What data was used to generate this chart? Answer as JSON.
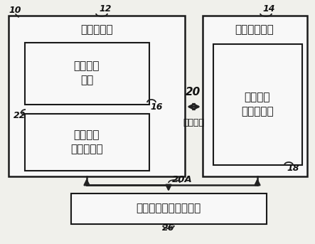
{
  "bg_color": "#f0f0eb",
  "box_fill": "#f8f8f8",
  "box_edge": "#1a1a1a",
  "text_color": "#111111",
  "arrow_color": "#222222",
  "label_10": "10",
  "label_12": "12",
  "label_14": "14",
  "label_16": "16",
  "label_18": "18",
  "label_20": "20",
  "label_20A": "20A",
  "label_22": "22",
  "label_26": "26",
  "text_proc_subsys": "处理子系统",
  "text_stor_subsys": "存储器子系统",
  "text_proc_circuit": "处理电路\n系统",
  "text_proc_cache": "一或多个\n处理器缓存",
  "text_stor_device": "一或多个\n存储器装置",
  "text_sys_bus": "系统总线",
  "text_stor_ctrl": "一或多个存储器控制器",
  "fig_width": 4.43,
  "fig_height": 3.43,
  "dpi": 100
}
